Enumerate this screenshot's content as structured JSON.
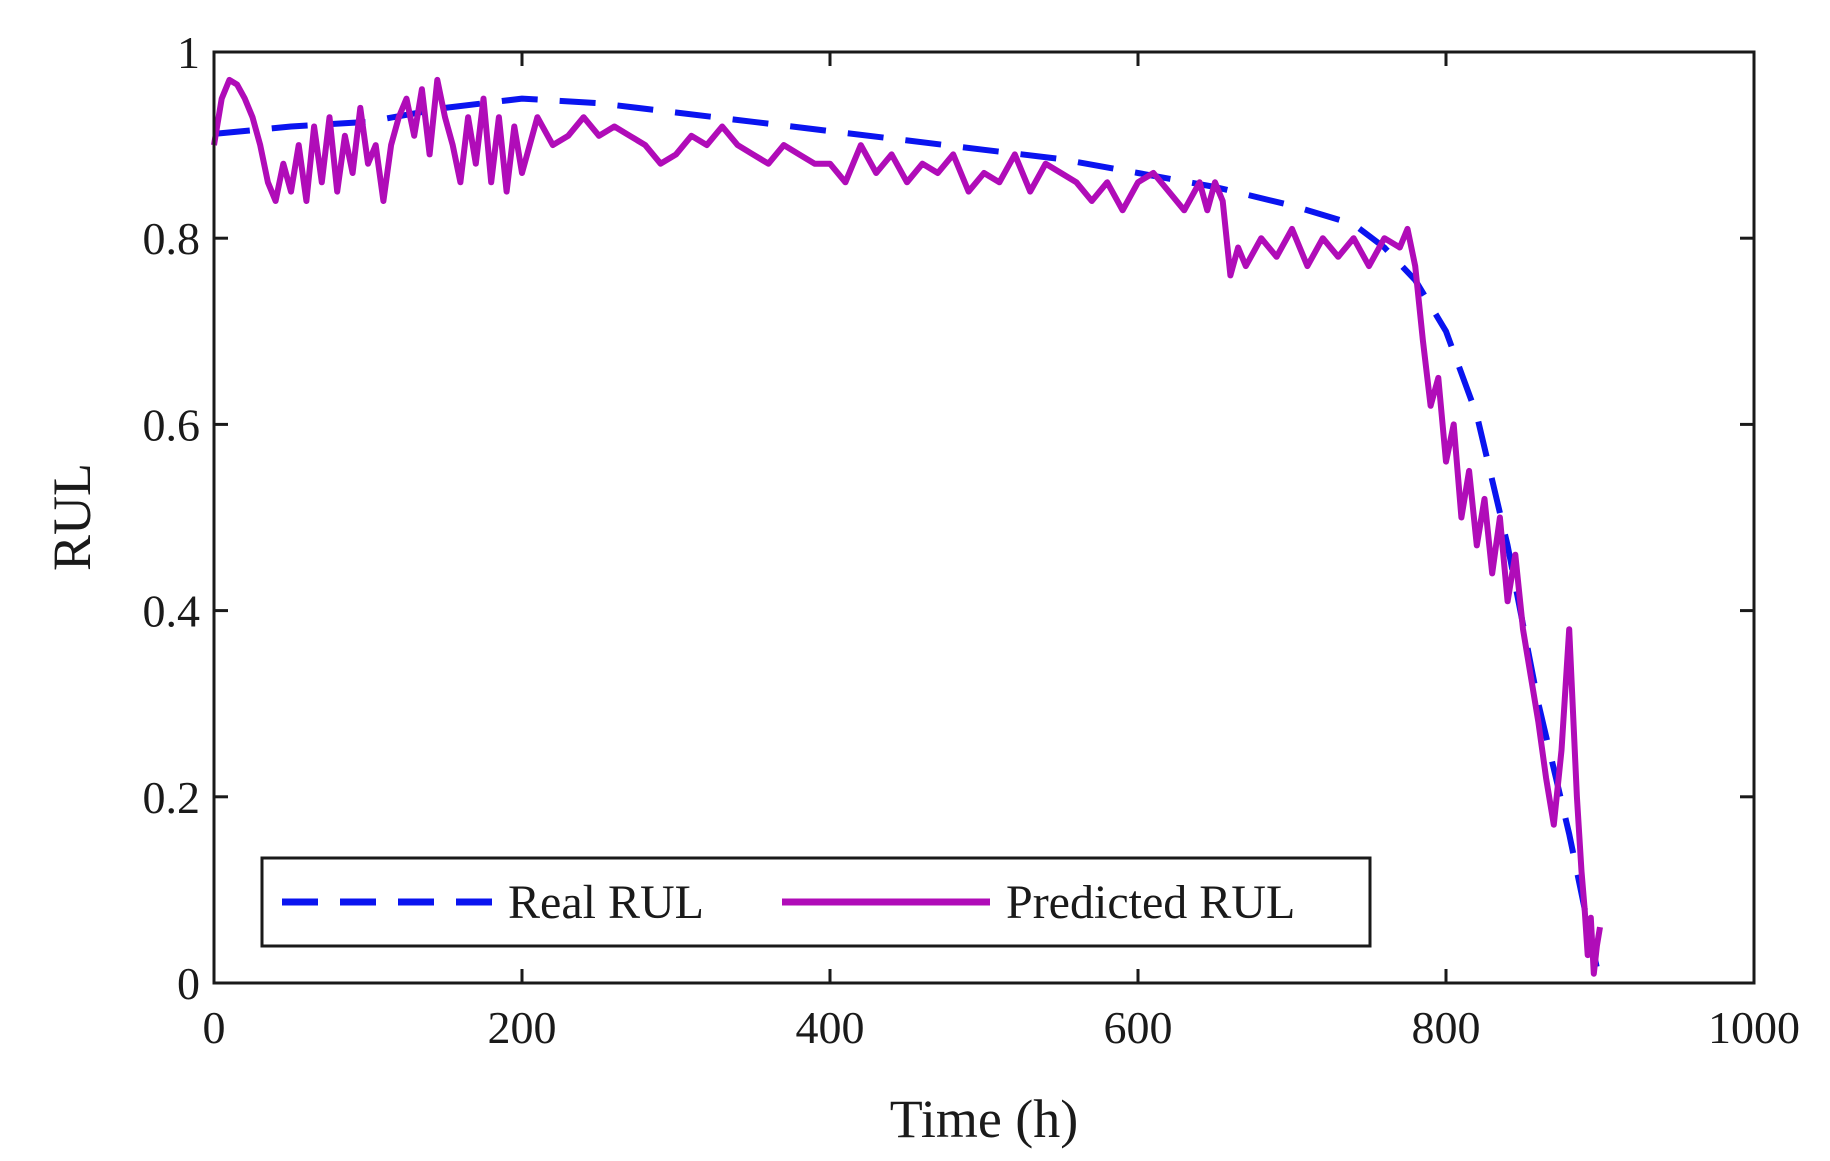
{
  "chart_data": {
    "type": "line",
    "title": "",
    "xlabel": "Time (h)",
    "ylabel": "RUL",
    "xlim": [
      0,
      1000
    ],
    "ylim": [
      0,
      1
    ],
    "xticks": [
      0,
      200,
      400,
      600,
      800,
      1000
    ],
    "xtick_labels": [
      "0",
      "200",
      "400",
      "600",
      "800",
      "1000"
    ],
    "yticks": [
      0,
      0.2,
      0.4,
      0.6,
      0.8,
      1
    ],
    "ytick_labels": [
      "0",
      "0.2",
      "0.4",
      "0.6",
      "0.8",
      "1"
    ],
    "grid": false,
    "legend_position": "bottom-left",
    "series": [
      {
        "name": "Real RUL",
        "style": "dashed",
        "color": "#0a14f0",
        "x": [
          0,
          50,
          100,
          150,
          200,
          250,
          300,
          350,
          400,
          450,
          500,
          550,
          600,
          650,
          700,
          740,
          760,
          780,
          800,
          820,
          840,
          860,
          880,
          895,
          900
        ],
        "y": [
          0.912,
          0.92,
          0.925,
          0.94,
          0.95,
          0.945,
          0.935,
          0.925,
          0.915,
          0.905,
          0.895,
          0.885,
          0.87,
          0.855,
          0.835,
          0.815,
          0.79,
          0.755,
          0.7,
          0.61,
          0.47,
          0.3,
          0.16,
          0.04,
          0.0
        ]
      },
      {
        "name": "Predicted RUL",
        "style": "solid",
        "color": "#b00cb8",
        "x": [
          0,
          5,
          10,
          15,
          20,
          25,
          30,
          35,
          40,
          45,
          50,
          55,
          60,
          65,
          70,
          75,
          80,
          85,
          90,
          95,
          100,
          105,
          110,
          115,
          120,
          125,
          130,
          135,
          140,
          145,
          150,
          155,
          160,
          165,
          170,
          175,
          180,
          185,
          190,
          195,
          200,
          210,
          220,
          230,
          240,
          250,
          260,
          270,
          280,
          290,
          300,
          310,
          320,
          330,
          340,
          350,
          360,
          370,
          380,
          390,
          400,
          410,
          420,
          430,
          440,
          450,
          460,
          470,
          480,
          490,
          500,
          510,
          520,
          530,
          540,
          550,
          560,
          570,
          580,
          590,
          600,
          610,
          620,
          630,
          640,
          645,
          650,
          655,
          660,
          665,
          670,
          680,
          690,
          700,
          710,
          720,
          730,
          740,
          750,
          760,
          770,
          775,
          780,
          785,
          790,
          795,
          800,
          805,
          810,
          815,
          820,
          825,
          830,
          835,
          840,
          845,
          850,
          855,
          860,
          865,
          870,
          875,
          880,
          885,
          888,
          890,
          892,
          894,
          896,
          898,
          900
        ],
        "y": [
          0.9,
          0.95,
          0.97,
          0.965,
          0.95,
          0.93,
          0.9,
          0.86,
          0.84,
          0.88,
          0.85,
          0.9,
          0.84,
          0.92,
          0.86,
          0.93,
          0.85,
          0.91,
          0.87,
          0.94,
          0.88,
          0.9,
          0.84,
          0.9,
          0.93,
          0.95,
          0.91,
          0.96,
          0.89,
          0.97,
          0.93,
          0.9,
          0.86,
          0.93,
          0.88,
          0.95,
          0.86,
          0.93,
          0.85,
          0.92,
          0.87,
          0.93,
          0.9,
          0.91,
          0.93,
          0.91,
          0.92,
          0.91,
          0.9,
          0.88,
          0.89,
          0.91,
          0.9,
          0.92,
          0.9,
          0.89,
          0.88,
          0.9,
          0.89,
          0.88,
          0.88,
          0.86,
          0.9,
          0.87,
          0.89,
          0.86,
          0.88,
          0.87,
          0.89,
          0.85,
          0.87,
          0.86,
          0.89,
          0.85,
          0.88,
          0.87,
          0.86,
          0.84,
          0.86,
          0.83,
          0.86,
          0.87,
          0.85,
          0.83,
          0.86,
          0.83,
          0.86,
          0.84,
          0.76,
          0.79,
          0.77,
          0.8,
          0.78,
          0.81,
          0.77,
          0.8,
          0.78,
          0.8,
          0.77,
          0.8,
          0.79,
          0.81,
          0.77,
          0.69,
          0.62,
          0.65,
          0.56,
          0.6,
          0.5,
          0.55,
          0.47,
          0.52,
          0.44,
          0.5,
          0.41,
          0.46,
          0.38,
          0.33,
          0.28,
          0.22,
          0.17,
          0.25,
          0.38,
          0.2,
          0.12,
          0.08,
          0.03,
          0.07,
          0.01,
          0.04,
          0.06
        ]
      }
    ]
  }
}
